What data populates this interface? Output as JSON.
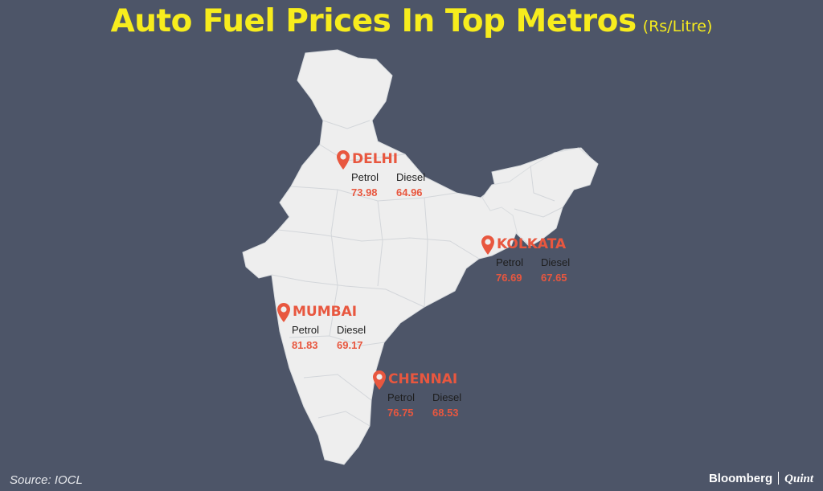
{
  "title": "Auto Fuel Prices In Top Metros",
  "unit": "(Rs/Litre)",
  "colors": {
    "background": "#4d5568",
    "title": "#f7ec1d",
    "land": "#eeeeee",
    "accent": "#e8573f"
  },
  "cities": [
    {
      "name": "DELHI",
      "petrol_label": "Petrol",
      "diesel_label": "Diesel",
      "petrol": "73.98",
      "diesel": "64.96"
    },
    {
      "name": "KOLKATA",
      "petrol_label": "Petrol",
      "diesel_label": "Diesel",
      "petrol": "76.69",
      "diesel": "67.65"
    },
    {
      "name": "MUMBAI",
      "petrol_label": "Petrol",
      "diesel_label": "Diesel",
      "petrol": "81.83",
      "diesel": "69.17"
    },
    {
      "name": "CHENNAI",
      "petrol_label": "Petrol",
      "diesel_label": "Diesel",
      "petrol": "76.75",
      "diesel": "68.53"
    }
  ],
  "source": "Source: IOCL",
  "brand": {
    "left": "Bloomberg",
    "right": "Quint"
  }
}
